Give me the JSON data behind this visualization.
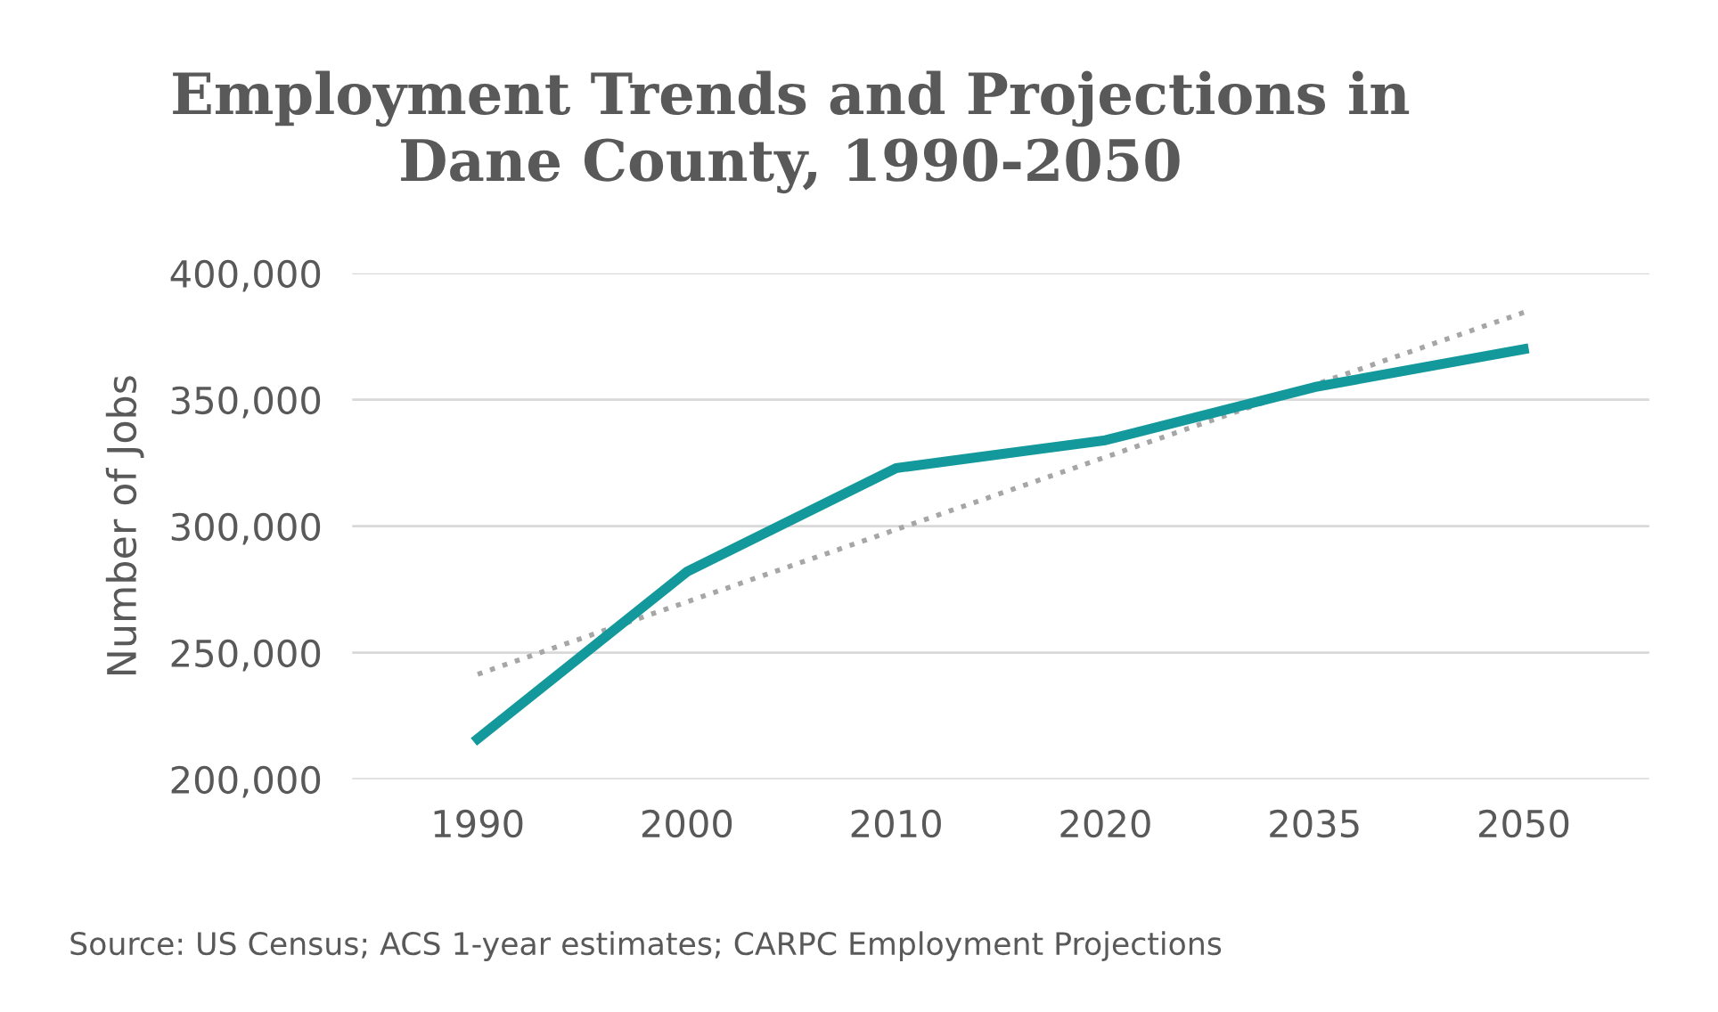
{
  "chart_data": {
    "type": "line",
    "title": "Employment Trends and Projections in\nDane County, 1990-2050",
    "ylabel": "Number of Jobs",
    "categories": [
      "1990",
      "2000",
      "2010",
      "2020",
      "2035",
      "2050"
    ],
    "series": [
      {
        "color": "#13999b",
        "values": [
          216000,
          282000,
          323000,
          334000,
          355000,
          370000
        ],
        "line_style": "solid"
      },
      {
        "color": "#a6a6a6",
        "values": [
          241500,
          270100,
          298700,
          327300,
          355900,
          384500
        ],
        "line_style": "dotted"
      }
    ],
    "ylim": [
      200000,
      400000
    ],
    "yticks": [
      {
        "value": 200000,
        "label": "200,000"
      },
      {
        "value": 250000,
        "label": "250,000"
      },
      {
        "value": 300000,
        "label": "300,000"
      },
      {
        "value": 350000,
        "label": "350,000"
      },
      {
        "value": 400000,
        "label": "400,000"
      }
    ],
    "grid": "y",
    "legend": false,
    "annotations": [
      "Source: US Census; ACS 1-year estimates; CARPC Employment Projections"
    ]
  }
}
